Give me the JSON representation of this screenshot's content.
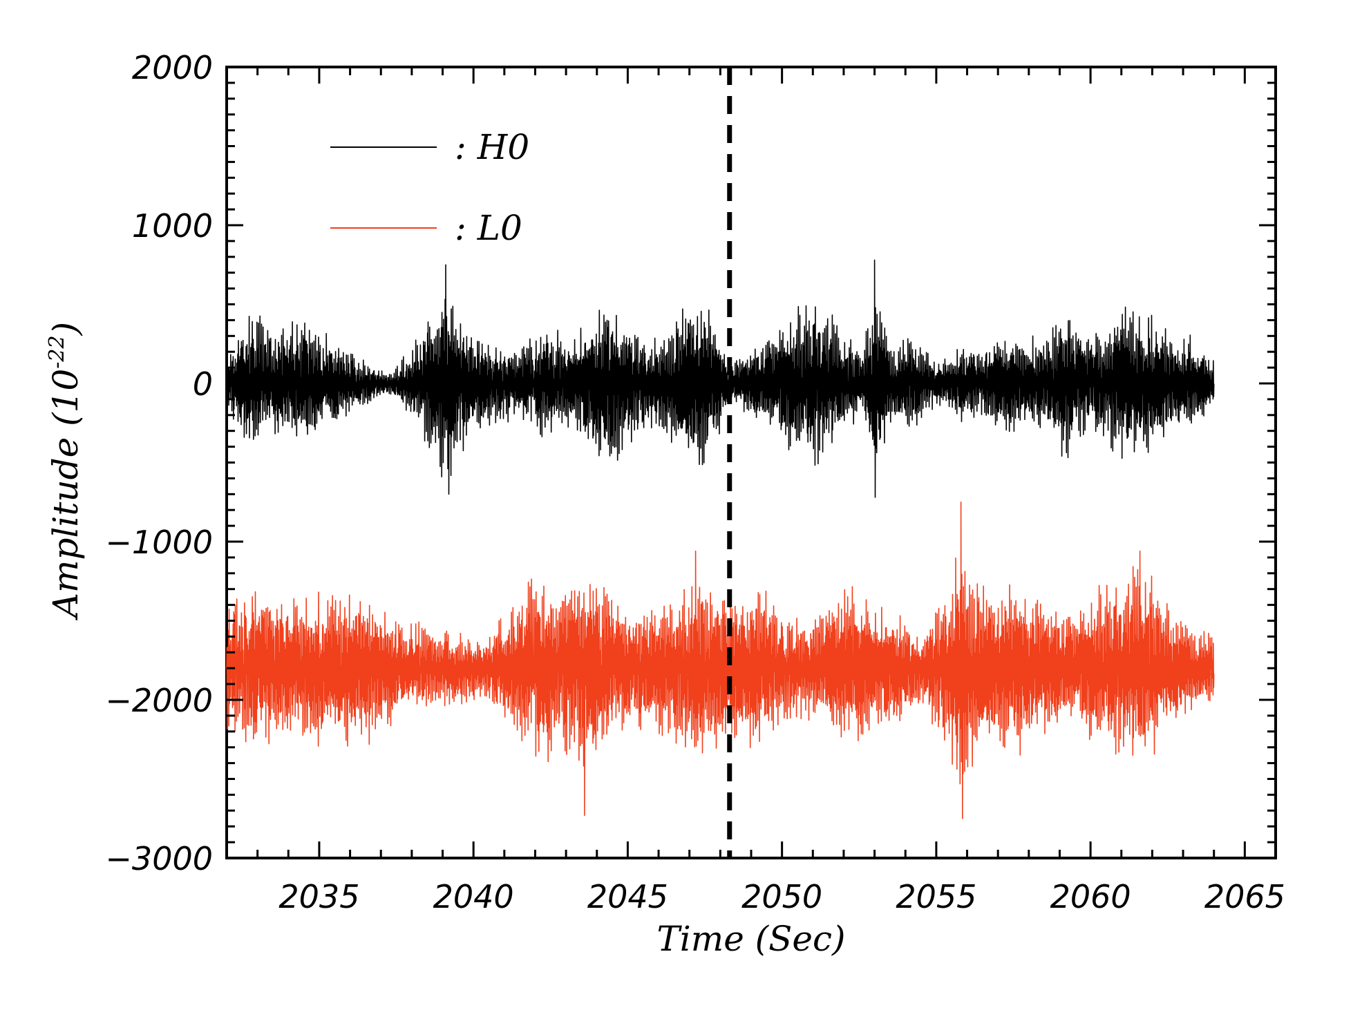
{
  "chart_data": {
    "type": "line",
    "title": "",
    "xlabel": "Time (Sec)",
    "ylabel_main": "Amplitude (10",
    "ylabel_exponent": "-22",
    "ylabel_close": ")",
    "xlim": [
      2032,
      2066
    ],
    "ylim": [
      -3000,
      2000
    ],
    "x_ticks": [
      2035,
      2040,
      2045,
      2050,
      2055,
      2060,
      2065
    ],
    "x_tick_labels": [
      "2035",
      "2040",
      "2045",
      "2050",
      "2055",
      "2060",
      "2065"
    ],
    "y_ticks": [
      2000,
      1000,
      0,
      -1000,
      -2000,
      -3000
    ],
    "y_tick_labels": [
      "2000",
      "1000",
      "0",
      "−1000",
      "−2000",
      "−3000"
    ],
    "event_marker": {
      "x": 2048.3,
      "style": "dashed",
      "color": "#000000"
    },
    "series": [
      {
        "name": "H0",
        "legend_label": ": H0",
        "color": "#000000",
        "x_start": 2032.0,
        "x_end": 2064.0,
        "offset": 0,
        "envelope": [
          [
            2032.0,
            200
          ],
          [
            2032.8,
            550
          ],
          [
            2033.5,
            380
          ],
          [
            2034.5,
            450
          ],
          [
            2035.5,
            300
          ],
          [
            2036.5,
            150
          ],
          [
            2037.3,
            80
          ],
          [
            2038.0,
            250
          ],
          [
            2038.7,
            580
          ],
          [
            2039.0,
            700
          ],
          [
            2039.6,
            500
          ],
          [
            2040.5,
            300
          ],
          [
            2041.5,
            250
          ],
          [
            2042.3,
            400
          ],
          [
            2043.0,
            350
          ],
          [
            2043.8,
            480
          ],
          [
            2044.5,
            650
          ],
          [
            2045.2,
            400
          ],
          [
            2046.0,
            300
          ],
          [
            2046.8,
            550
          ],
          [
            2047.3,
            680
          ],
          [
            2047.8,
            450
          ],
          [
            2048.3,
            150
          ],
          [
            2049.0,
            250
          ],
          [
            2049.8,
            380
          ],
          [
            2050.5,
            550
          ],
          [
            2051.2,
            620
          ],
          [
            2052.0,
            350
          ],
          [
            2052.6,
            250
          ],
          [
            2053.0,
            720
          ],
          [
            2053.5,
            300
          ],
          [
            2054.2,
            350
          ],
          [
            2055.0,
            150
          ],
          [
            2055.7,
            250
          ],
          [
            2056.5,
            300
          ],
          [
            2057.3,
            350
          ],
          [
            2058.0,
            300
          ],
          [
            2058.8,
            400
          ],
          [
            2059.3,
            580
          ],
          [
            2059.8,
            350
          ],
          [
            2060.5,
            400
          ],
          [
            2061.2,
            600
          ],
          [
            2061.8,
            550
          ],
          [
            2062.5,
            350
          ],
          [
            2063.2,
            350
          ],
          [
            2064.0,
            150
          ]
        ],
        "spikes": [
          [
            2053.0,
            780
          ],
          [
            2039.1,
            750
          ],
          [
            2053.02,
            -720
          ],
          [
            2039.2,
            -700
          ]
        ]
      },
      {
        "name": "L0",
        "legend_label": ": L0",
        "color": "#f0401c",
        "x_start": 2032.0,
        "x_end": 2064.0,
        "offset": -1800,
        "envelope": [
          [
            2032.0,
            450
          ],
          [
            2032.8,
            600
          ],
          [
            2033.5,
            550
          ],
          [
            2034.5,
            500
          ],
          [
            2035.5,
            550
          ],
          [
            2036.5,
            550
          ],
          [
            2037.5,
            350
          ],
          [
            2038.5,
            300
          ],
          [
            2039.5,
            250
          ],
          [
            2040.5,
            250
          ],
          [
            2041.3,
            450
          ],
          [
            2042.0,
            700
          ],
          [
            2042.8,
            600
          ],
          [
            2043.5,
            750
          ],
          [
            2044.2,
            650
          ],
          [
            2045.0,
            400
          ],
          [
            2045.8,
            450
          ],
          [
            2046.5,
            500
          ],
          [
            2047.2,
            650
          ],
          [
            2048.0,
            600
          ],
          [
            2048.5,
            500
          ],
          [
            2049.2,
            600
          ],
          [
            2050.0,
            400
          ],
          [
            2050.8,
            350
          ],
          [
            2051.5,
            450
          ],
          [
            2052.2,
            550
          ],
          [
            2053.0,
            500
          ],
          [
            2053.8,
            400
          ],
          [
            2054.5,
            250
          ],
          [
            2055.2,
            550
          ],
          [
            2055.8,
            850
          ],
          [
            2056.5,
            600
          ],
          [
            2057.3,
            600
          ],
          [
            2058.0,
            600
          ],
          [
            2058.8,
            450
          ],
          [
            2059.5,
            400
          ],
          [
            2060.3,
            600
          ],
          [
            2061.0,
            650
          ],
          [
            2061.7,
            750
          ],
          [
            2062.3,
            550
          ],
          [
            2063.0,
            350
          ],
          [
            2063.5,
            300
          ],
          [
            2064.0,
            250
          ]
        ],
        "spikes": [
          [
            2055.8,
            -750
          ],
          [
            2055.85,
            -2750
          ],
          [
            2043.6,
            -2730
          ],
          [
            2047.2,
            -1060
          ],
          [
            2061.6,
            -1060
          ]
        ]
      }
    ]
  }
}
